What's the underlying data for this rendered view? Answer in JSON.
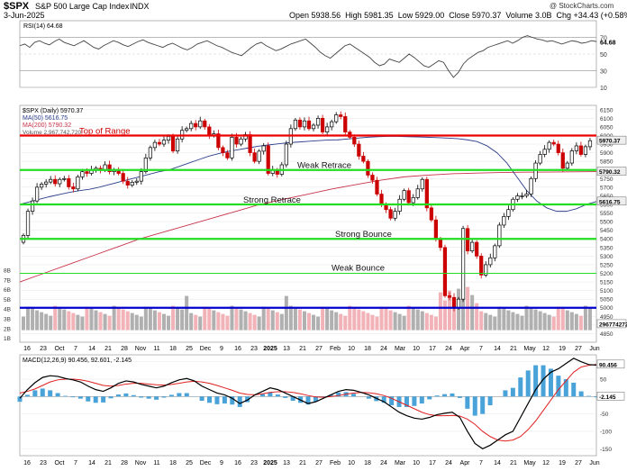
{
  "header": {
    "symbol": "$SPX",
    "name": "S&P 500 Large Cap Index",
    "exchange": "INDX",
    "date": "3-Jun-2025",
    "ohlc_line": "Open 5938.56  High 5981.35  Low 5929.00  Close 5970.37  Volume 3.0B  Chg +34.43 (+0.58%)",
    "open_label": "Open",
    "open": "5938.56",
    "high_label": "High",
    "high": "5981.35",
    "low_label": "Low",
    "low": "5929.00",
    "close_label": "Close",
    "close": "5970.37",
    "volume_label": "Volume",
    "volume": "3.0B",
    "chg_label": "Chg",
    "chg": "+34.43 (+0.58%)",
    "watermark": "@ StockCharts.com"
  },
  "colors": {
    "up": "#000000",
    "down": "#cc0000",
    "ma50": "#2c3e8a",
    "ma200": "#c8334a",
    "red_level": "#ee0000",
    "green_level": "#22dd22",
    "blue_level": "#0000cc",
    "vol_up": "#b0b0b0",
    "vol_down": "#f2b3b8",
    "macd_hist": "#4aa3d8",
    "rsi_line": "#444444",
    "rsi_os": "#8c4b4b"
  },
  "chart_data": [
    {
      "type": "line",
      "panel": "rsi",
      "title": "RSI(14) 64.68",
      "ylim": [
        10,
        90
      ],
      "ticks": [
        70,
        50,
        30,
        10
      ],
      "last_value": "64.68",
      "values": [
        60,
        62,
        58,
        64,
        66,
        63,
        61,
        65,
        68,
        64,
        62,
        60,
        63,
        66,
        62,
        58,
        56,
        60,
        63,
        66,
        64,
        61,
        59,
        62,
        65,
        67,
        64,
        62,
        60,
        58,
        61,
        63,
        60,
        57,
        55,
        58,
        62,
        64,
        66,
        63,
        60,
        58,
        55,
        52,
        50,
        48,
        53,
        58,
        62,
        64,
        60,
        57,
        54,
        56,
        59,
        62,
        64,
        66,
        68,
        63,
        58,
        52,
        48,
        45,
        50,
        55,
        60,
        62,
        58,
        54,
        50,
        46,
        40,
        36,
        38,
        44,
        42,
        40,
        45,
        50,
        46,
        41,
        36,
        34,
        38,
        42,
        40,
        30,
        22,
        28,
        38,
        44,
        48,
        52,
        54,
        58,
        60,
        62,
        64,
        66,
        63,
        66,
        70,
        72,
        70,
        68,
        67,
        65,
        66,
        64,
        62,
        64,
        66,
        65,
        63,
        64,
        66,
        65
      ]
    },
    {
      "type": "candlestick",
      "panel": "price",
      "title": "$SPX (Daily) 5970.37",
      "x_labels": [
        "16",
        "23",
        "Oct",
        "7",
        "14",
        "21",
        "28",
        "Nov",
        "11",
        "18",
        "25",
        "Dec",
        "9",
        "16",
        "23",
        "2025",
        "13",
        "21",
        "27",
        "Feb",
        "10",
        "18",
        "24",
        "Mar",
        "10",
        "17",
        "24",
        "Apr",
        "7",
        "14",
        "21",
        "May",
        "12",
        "19",
        "27",
        "Jun"
      ],
      "ylim": [
        4800,
        6175
      ],
      "y_ticks": [
        6150,
        6100,
        6050,
        6000,
        5950,
        5900,
        5850,
        5800,
        5750,
        5700,
        5650,
        5600,
        5550,
        5500,
        5450,
        5400,
        5350,
        5300,
        5250,
        5200,
        5150,
        5100,
        5050,
        5000,
        4950,
        4900,
        4850
      ],
      "closes": [
        5420,
        5560,
        5620,
        5700,
        5718,
        5730,
        5745,
        5720,
        5745,
        5750,
        5702,
        5690,
        5760,
        5790,
        5780,
        5800,
        5810,
        5800,
        5830,
        5790,
        5800,
        5780,
        5735,
        5712,
        5729,
        5735,
        5790,
        5870,
        5930,
        5960,
        5950,
        5973,
        5995,
        5910,
        5980,
        6030,
        6040,
        6070,
        6050,
        6085,
        6050,
        6000,
        6010,
        5930,
        5900,
        5870,
        5990,
        5950,
        5980,
        6005,
        5900,
        5850,
        5909,
        5940,
        5780,
        5800,
        5775,
        5830,
        5950,
        6040,
        6090,
        6050,
        6085,
        6040,
        6060,
        6100,
        6020,
        6050,
        6080,
        6120,
        6110,
        6020,
        5990,
        5950,
        5880,
        5850,
        5770,
        5740,
        5660,
        5600,
        5570,
        5520,
        5560,
        5630,
        5680,
        5610,
        5640,
        5690,
        5745,
        5580,
        5510,
        5400,
        5350,
        5070,
        5060,
        5000,
        5050,
        5460,
        5330,
        5380,
        5300,
        5190,
        5250,
        5290,
        5360,
        5480,
        5530,
        5570,
        5630,
        5650,
        5650,
        5660,
        5750,
        5840,
        5890,
        5920,
        5960,
        5950,
        5900,
        5810,
        5840,
        5911,
        5940,
        5890,
        5935,
        5970
      ],
      "ma50_label": "MA(50) 5616.75",
      "ma50_values": [
        5600,
        5615,
        5630,
        5645,
        5658,
        5670,
        5680,
        5688,
        5700,
        5715,
        5730,
        5745,
        5760,
        5775,
        5790,
        5800,
        5820,
        5840,
        5860,
        5880,
        5895,
        5908,
        5918,
        5928,
        5938,
        5945,
        5952,
        5958,
        5962,
        5966,
        5970,
        5974,
        5975,
        5980,
        5985,
        5990,
        5993,
        5995,
        5995,
        5993,
        5992,
        5990,
        5988,
        5985,
        5982,
        5975,
        5965,
        5940,
        5900,
        5840,
        5760,
        5680,
        5620,
        5580,
        5560,
        5560,
        5575,
        5600,
        5616.75
      ],
      "ma200_label": "MA(200) 5790.32",
      "ma200_values": [
        5150,
        5200,
        5250,
        5300,
        5350,
        5400,
        5440,
        5480,
        5520,
        5560,
        5600,
        5630,
        5660,
        5690,
        5715,
        5740,
        5760,
        5770,
        5778,
        5782,
        5785,
        5787,
        5788,
        5789,
        5790.32
      ],
      "volume_label": "Volume 2,967,742,720",
      "volume_axis": [
        "8B",
        "7B",
        "6B",
        "5B",
        "4B",
        "3B",
        "2B",
        "1B"
      ],
      "annotations": [
        {
          "label": "Top of Range",
          "value": 6000,
          "color": "red"
        },
        {
          "label": "Weak Retrace",
          "value": 5800,
          "color": "green"
        },
        {
          "label": "Strong Retrace",
          "value": 5600,
          "color": "green"
        },
        {
          "label": "Strong Bounce",
          "value": 5400,
          "color": "green"
        },
        {
          "label": "Weak Bounce",
          "value": 5200,
          "color": "green"
        },
        {
          "label": "",
          "value": 5000,
          "color": "blue"
        }
      ],
      "right_badges": [
        {
          "text": "5970.37",
          "value": 5970.37
        },
        {
          "text": "5790.32",
          "value": 5790.32
        },
        {
          "text": "5616.75",
          "value": 5616.75
        },
        {
          "text": "2967742720",
          "vol": true
        }
      ]
    },
    {
      "type": "line",
      "panel": "macd",
      "title": "MACD(12,26,9) 90.456, 92.601, -2.145",
      "ylim": [
        -170,
        120
      ],
      "y_ticks": [
        100,
        50,
        0,
        -50,
        -100,
        -150
      ],
      "macd_values": [
        -5,
        20,
        40,
        55,
        60,
        58,
        52,
        48,
        42,
        30,
        20,
        15,
        25,
        38,
        45,
        42,
        35,
        30,
        25,
        30,
        40,
        48,
        52,
        45,
        30,
        20,
        10,
        5,
        -5,
        -20,
        -10,
        5,
        15,
        25,
        20,
        10,
        0,
        -10,
        -20,
        -15,
        -5,
        5,
        15,
        20,
        18,
        12,
        5,
        -5,
        -15,
        -30,
        -45,
        -55,
        -62,
        -65,
        -60,
        -52,
        -48,
        -45,
        -60,
        -100,
        -135,
        -150,
        -140,
        -125,
        -110,
        -100,
        -60,
        -20,
        20,
        50,
        70,
        80,
        95,
        110,
        100,
        92,
        90.456
      ],
      "signal_values": [
        10,
        15,
        22,
        32,
        42,
        48,
        50,
        50,
        48,
        44,
        38,
        32,
        30,
        32,
        36,
        38,
        38,
        36,
        34,
        33,
        35,
        38,
        42,
        44,
        42,
        38,
        32,
        25,
        18,
        10,
        6,
        5,
        8,
        12,
        14,
        14,
        12,
        8,
        3,
        -1,
        -2,
        0,
        3,
        7,
        10,
        12,
        11,
        8,
        3,
        -5,
        -15,
        -25,
        -35,
        -45,
        -52,
        -55,
        -55,
        -54,
        -56,
        -65,
        -80,
        -100,
        -115,
        -125,
        -128,
        -125,
        -115,
        -95,
        -70,
        -40,
        -10,
        20,
        45,
        70,
        85,
        90,
        92.601
      ],
      "hist_last": "-2.145",
      "badges": [
        "90.456",
        "-2.145"
      ]
    }
  ]
}
